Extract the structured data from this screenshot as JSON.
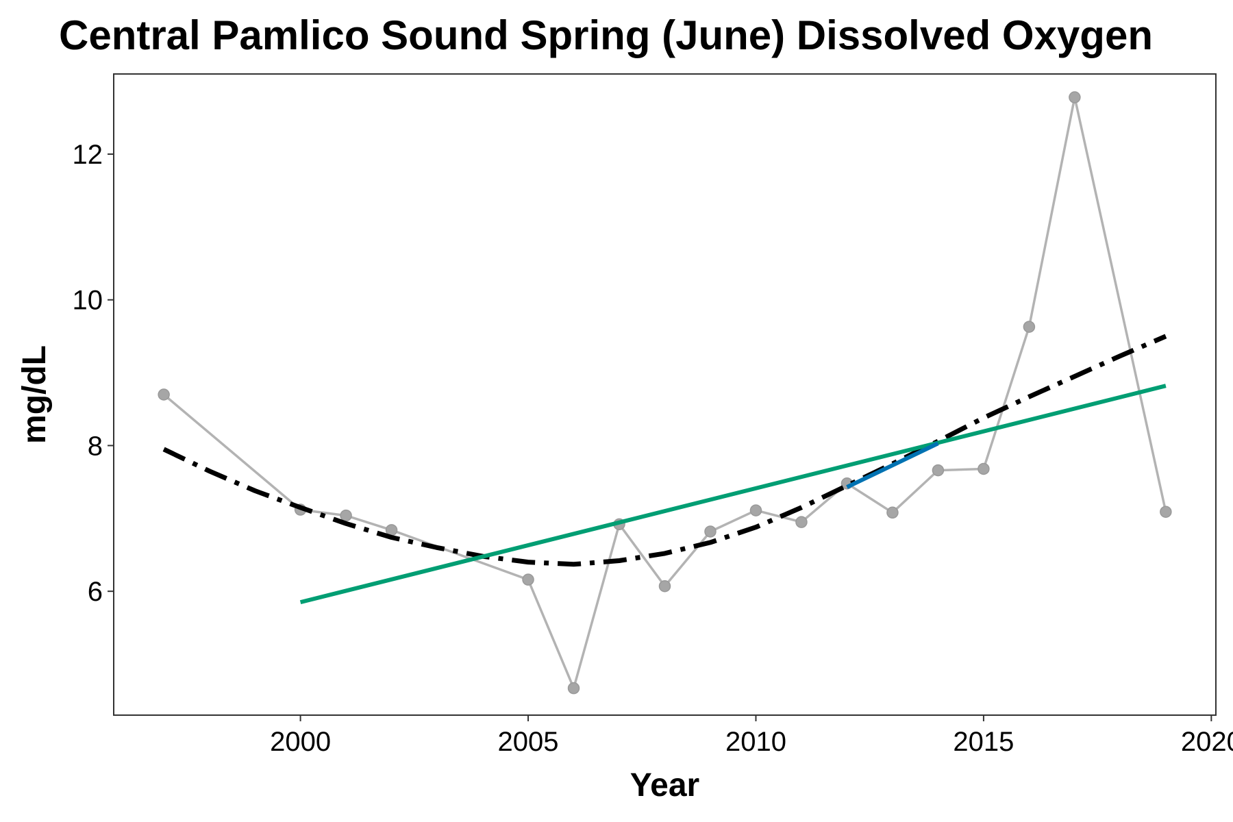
{
  "chart_data": {
    "type": "line",
    "title": "Central Pamlico Sound Spring (June) Dissolved Oxygen",
    "xlabel": "Year",
    "ylabel": "mg/dL",
    "xlim": [
      1995.9,
      2020.1
    ],
    "ylim": [
      4.3,
      13.1
    ],
    "xticks": [
      "2000",
      "2005",
      "2010",
      "2015",
      "2020"
    ],
    "yticks": [
      "6",
      "8",
      "10",
      "12"
    ],
    "grid": false,
    "legend": "none",
    "series": [
      {
        "style": "observed",
        "color": "#b3b3b3",
        "marker": "circle",
        "x": [
          1997,
          2000,
          2001,
          2002,
          2005,
          2006,
          2007,
          2008,
          2009,
          2010,
          2011,
          2012,
          2013,
          2014,
          2015,
          2016,
          2017,
          2019
        ],
        "y": [
          8.7,
          7.12,
          7.04,
          6.84,
          6.16,
          4.67,
          6.92,
          6.07,
          6.82,
          7.11,
          6.95,
          7.48,
          7.08,
          7.66,
          7.68,
          9.63,
          12.78,
          7.09
        ]
      },
      {
        "style": "dash-dot trend",
        "color": "#000000",
        "x": [
          1997,
          1998,
          1999,
          2000,
          2001,
          2002,
          2003,
          2004,
          2005,
          2006,
          2007,
          2008,
          2009,
          2010,
          2011,
          2012,
          2013,
          2014,
          2015,
          2016,
          2017,
          2018,
          2019
        ],
        "y": [
          7.95,
          7.65,
          7.38,
          7.15,
          6.93,
          6.74,
          6.6,
          6.48,
          6.4,
          6.37,
          6.42,
          6.52,
          6.67,
          6.88,
          7.15,
          7.45,
          7.75,
          8.06,
          8.38,
          8.67,
          8.95,
          9.23,
          9.5
        ]
      },
      {
        "style": "linear trend",
        "color": "#009e73",
        "x": [
          2000,
          2019
        ],
        "y": [
          5.85,
          8.82
        ]
      },
      {
        "style": "highlighted segment",
        "color": "#0072b2",
        "x": [
          2012,
          2014
        ],
        "y": [
          7.43,
          8.03
        ]
      }
    ]
  }
}
